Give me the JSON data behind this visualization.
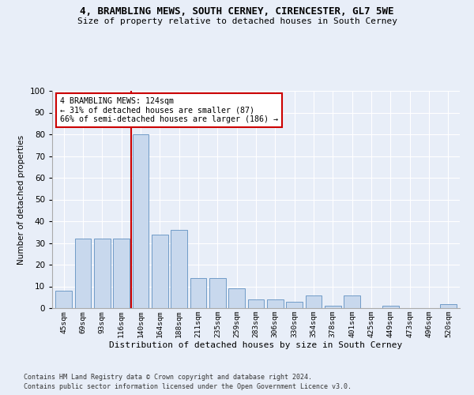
{
  "title_line1": "4, BRAMBLING MEWS, SOUTH CERNEY, CIRENCESTER, GL7 5WE",
  "title_line2": "Size of property relative to detached houses in South Cerney",
  "xlabel": "Distribution of detached houses by size in South Cerney",
  "ylabel": "Number of detached properties",
  "categories": [
    "45sqm",
    "69sqm",
    "93sqm",
    "116sqm",
    "140sqm",
    "164sqm",
    "188sqm",
    "211sqm",
    "235sqm",
    "259sqm",
    "283sqm",
    "306sqm",
    "330sqm",
    "354sqm",
    "378sqm",
    "401sqm",
    "425sqm",
    "449sqm",
    "473sqm",
    "496sqm",
    "520sqm"
  ],
  "values": [
    8,
    32,
    32,
    32,
    80,
    34,
    36,
    14,
    14,
    9,
    4,
    4,
    3,
    6,
    1,
    6,
    0,
    1,
    0,
    0,
    2
  ],
  "bar_color": "#c8d8ed",
  "bar_edge_color": "#6090c0",
  "annotation_line1": "4 BRAMBLING MEWS: 124sqm",
  "annotation_line2": "← 31% of detached houses are smaller (87)",
  "annotation_line3": "66% of semi-detached houses are larger (186) →",
  "annotation_box_color": "#ffffff",
  "annotation_box_edge": "#cc0000",
  "marker_line_color": "#cc0000",
  "ylim": [
    0,
    100
  ],
  "yticks": [
    0,
    10,
    20,
    30,
    40,
    50,
    60,
    70,
    80,
    90,
    100
  ],
  "footer1": "Contains HM Land Registry data © Crown copyright and database right 2024.",
  "footer2": "Contains public sector information licensed under the Open Government Licence v3.0.",
  "bg_color": "#e8eef8",
  "plot_bg_color": "#e8eef8"
}
